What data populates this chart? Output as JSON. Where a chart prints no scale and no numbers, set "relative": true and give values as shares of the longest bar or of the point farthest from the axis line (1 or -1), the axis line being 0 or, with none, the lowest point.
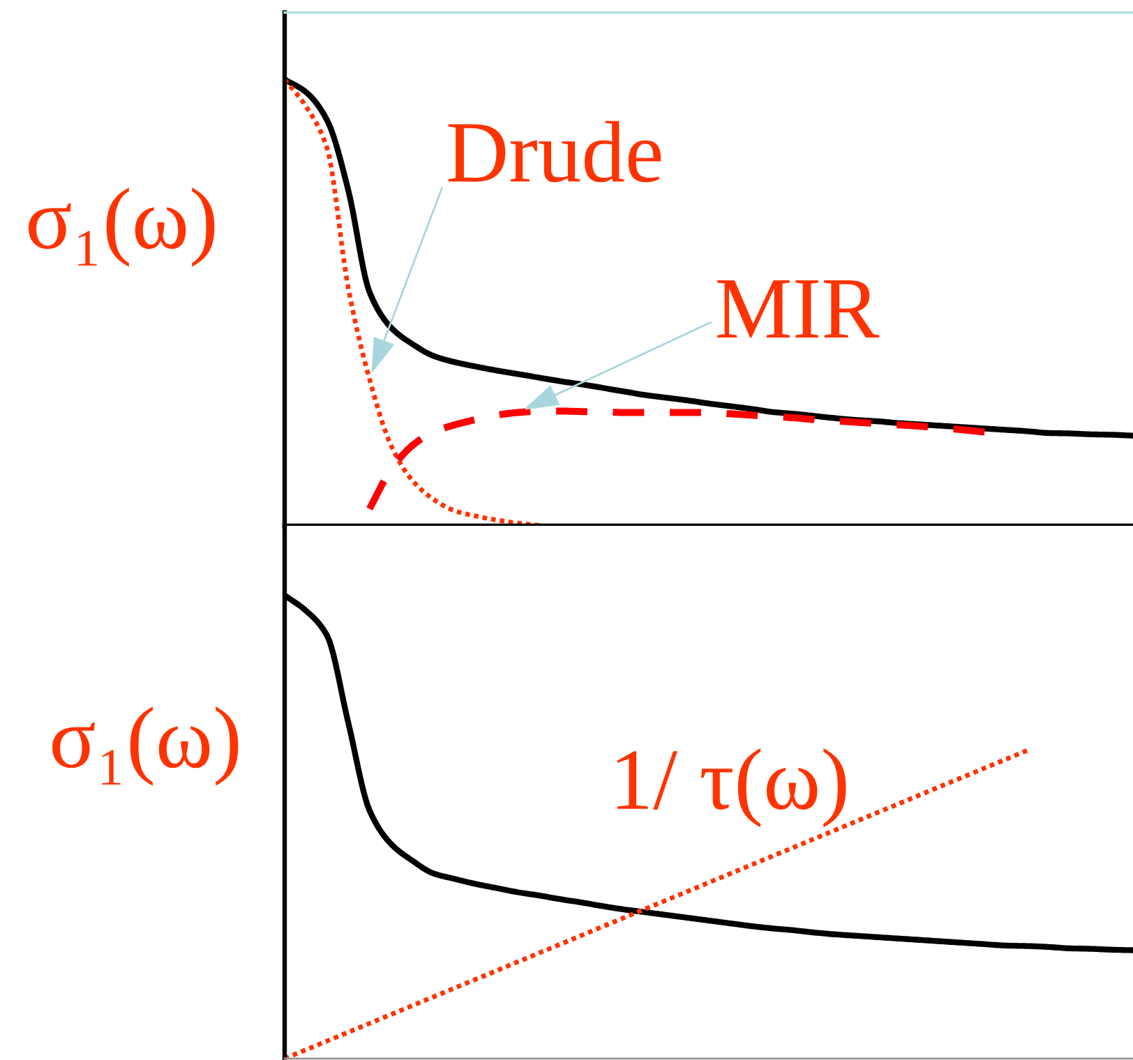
{
  "chart_data": [
    {
      "type": "line",
      "relative": true,
      "ylabel": "σ₁(ω)",
      "categories": [
        null,
        null,
        null,
        null,
        null,
        null,
        null,
        null,
        null,
        null,
        null,
        null,
        null,
        null,
        null,
        null,
        null,
        null,
        null,
        null,
        null,
        null,
        null,
        null,
        null,
        null,
        null,
        null,
        null,
        null,
        null,
        null,
        null,
        null,
        null,
        null,
        null,
        null,
        null,
        null,
        null
      ],
      "series": [
        {
          "color": "#000000",
          "line_style": "solid",
          "values": [
            1.0,
            0.972,
            0.909,
            0.752,
            0.524,
            0.445,
            0.408,
            0.381,
            0.367,
            0.357,
            0.348,
            0.34,
            0.332,
            0.324,
            0.317,
            0.309,
            0.301,
            0.293,
            0.287,
            0.281,
            0.274,
            0.268,
            0.262,
            0.255,
            0.251,
            0.246,
            0.241,
            0.237,
            0.234,
            0.23,
            0.227,
            0.224,
            0.221,
            0.218,
            0.215,
            0.212,
            0.208,
            0.207,
            0.205,
            0.204,
            0.202
          ]
        },
        {
          "name": "Drude",
          "color": "#ff3300",
          "line_style": "dotted",
          "values": [
            1.0,
            0.94,
            0.846,
            0.533,
            0.329,
            0.182,
            0.103,
            0.06,
            0.034,
            0.022,
            0.013,
            0.006,
            0.001,
            null,
            null,
            null,
            null,
            null,
            null,
            null,
            null,
            null,
            null,
            null,
            null,
            null,
            null,
            null,
            null,
            null,
            null,
            null,
            null,
            null,
            null,
            null,
            null,
            null,
            null,
            null,
            null
          ]
        },
        {
          "name": "MIR",
          "color": "#ff0000",
          "line_style": "dashed",
          "values": [
            null,
            null,
            null,
            null,
            0.038,
            0.125,
            0.179,
            0.21,
            0.226,
            0.238,
            0.248,
            0.254,
            0.257,
            0.257,
            0.256,
            0.255,
            0.254,
            0.254,
            0.254,
            0.254,
            0.254,
            0.251,
            0.248,
            0.245,
            0.242,
            0.238,
            0.235,
            0.232,
            0.229,
            0.226,
            0.223,
            0.219,
            0.215,
            0.21,
            null,
            null,
            null,
            null,
            null,
            null,
            null
          ]
        }
      ]
    },
    {
      "type": "line",
      "relative": true,
      "ylabel": "σ₁(ω)",
      "categories": [
        null,
        null,
        null,
        null,
        null,
        null,
        null,
        null,
        null,
        null,
        null,
        null,
        null,
        null,
        null,
        null,
        null,
        null,
        null,
        null,
        null,
        null,
        null,
        null,
        null,
        null,
        null,
        null,
        null,
        null,
        null,
        null,
        null,
        null,
        null,
        null,
        null,
        null,
        null,
        null,
        null
      ],
      "series": [
        {
          "color": "#000000",
          "line_style": "solid",
          "values": [
            1.0,
            0.967,
            0.913,
            0.725,
            0.536,
            0.464,
            0.428,
            0.4,
            0.388,
            0.377,
            0.368,
            0.359,
            0.352,
            0.344,
            0.337,
            0.329,
            0.322,
            0.316,
            0.31,
            0.304,
            0.298,
            0.292,
            0.286,
            0.281,
            0.277,
            0.272,
            0.268,
            0.265,
            0.262,
            0.259,
            0.256,
            0.253,
            0.25,
            0.247,
            0.244,
            0.243,
            0.241,
            0.238,
            0.237,
            0.235,
            0.234
          ]
        },
        {
          "name": "1/ τ(ω)",
          "color": "#ff3300",
          "line_style": "dotted",
          "values": [
            0.0,
            0.019,
            0.038,
            0.057,
            0.076,
            0.095,
            0.114,
            0.133,
            0.152,
            0.171,
            0.19,
            0.209,
            0.228,
            0.247,
            0.266,
            0.285,
            0.304,
            0.323,
            0.342,
            0.361,
            0.38,
            0.399,
            0.418,
            0.437,
            0.456,
            0.475,
            0.494,
            0.513,
            0.532,
            0.551,
            0.57,
            0.589,
            0.608,
            0.627,
            0.646,
            0.665,
            null,
            null,
            null,
            null,
            null
          ]
        }
      ]
    }
  ]
}
